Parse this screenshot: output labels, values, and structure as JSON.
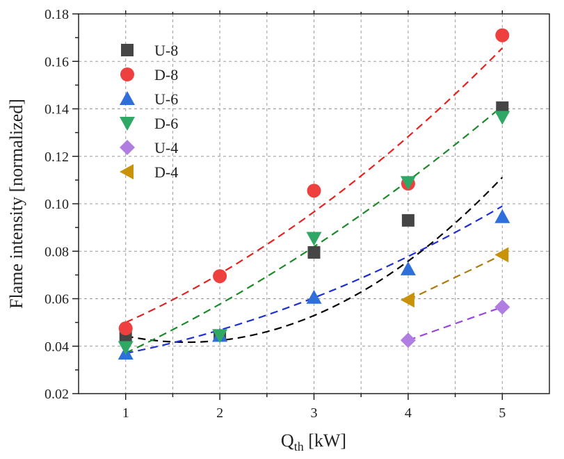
{
  "chart_data": {
    "type": "scatter",
    "title": "",
    "xlabel_main": "Q",
    "xlabel_sub": "th",
    "xlabel_unit": " [kW]",
    "ylabel": "Flame intensity [normalized]",
    "xlim": [
      0.5,
      5.5
    ],
    "ylim": [
      0.02,
      0.18
    ],
    "xticks": [
      1,
      2,
      3,
      4,
      5
    ],
    "xtick_labels": [
      "1",
      "2",
      "3",
      "4",
      "5"
    ],
    "yticks": [
      0.02,
      0.04,
      0.06,
      0.08,
      0.1,
      0.12,
      0.14,
      0.16,
      0.18
    ],
    "ytick_labels": [
      "0.02",
      "0.04",
      "0.06",
      "0.08",
      "0.10",
      "0.12",
      "0.14",
      "0.16",
      "0.18"
    ],
    "grid": true,
    "legend_position": "top-left",
    "series": [
      {
        "name": "U-8",
        "marker": "square",
        "color": "#454545",
        "fit_color": "#000000",
        "x": [
          1,
          2,
          3,
          4,
          5
        ],
        "values": [
          0.0445,
          0.0445,
          0.0795,
          0.093,
          0.1405
        ],
        "fit_x": [
          1,
          5
        ],
        "fit_coeffs": [
          0.0062,
          -0.0205,
          0.0586
        ]
      },
      {
        "name": "D-8",
        "marker": "circle",
        "color": "#ef4040",
        "fit_color": "#e8211e",
        "x": [
          1,
          2,
          3,
          4,
          5
        ],
        "values": [
          0.0475,
          0.0695,
          0.1055,
          0.1085,
          0.171
        ],
        "fit_x": [
          1,
          5
        ],
        "fit_coeffs": [
          0.0028,
          0.0121,
          0.0351
        ]
      },
      {
        "name": "U-6",
        "marker": "triangle-up",
        "color": "#2f6fdc",
        "fit_color": "#1f2fd6",
        "x": [
          1,
          2,
          3,
          4,
          5
        ],
        "values": [
          0.037,
          0.0445,
          0.0605,
          0.0725,
          0.0945
        ],
        "fit_x": [
          1,
          5
        ],
        "fit_coeffs": [
          0.0019,
          0.0041,
          0.031
        ]
      },
      {
        "name": "D-6",
        "marker": "triangle-down",
        "color": "#2fa866",
        "fit_color": "#1d8a2a",
        "x": [
          1,
          2,
          3,
          4,
          5
        ],
        "values": [
          0.0395,
          0.0445,
          0.0855,
          0.109,
          0.1365
        ],
        "fit_x": [
          1,
          5
        ],
        "fit_coeffs": [
          0.0018,
          0.0152,
          0.0201
        ]
      },
      {
        "name": "U-4",
        "marker": "diamond",
        "color": "#b07ee0",
        "fit_color": "#9a45e0",
        "x": [
          4,
          5
        ],
        "values": [
          0.0425,
          0.0565
        ],
        "fit_x": [
          4,
          5
        ],
        "fit_coeffs": [
          0,
          0.014,
          -0.0135
        ]
      },
      {
        "name": "D-4",
        "marker": "triangle-left",
        "color": "#c8930a",
        "fit_color": "#b07a0a",
        "x": [
          4,
          5
        ],
        "values": [
          0.0595,
          0.0785
        ],
        "fit_x": [
          4,
          5
        ],
        "fit_coeffs": [
          0,
          0.019,
          -0.0165
        ]
      }
    ]
  }
}
